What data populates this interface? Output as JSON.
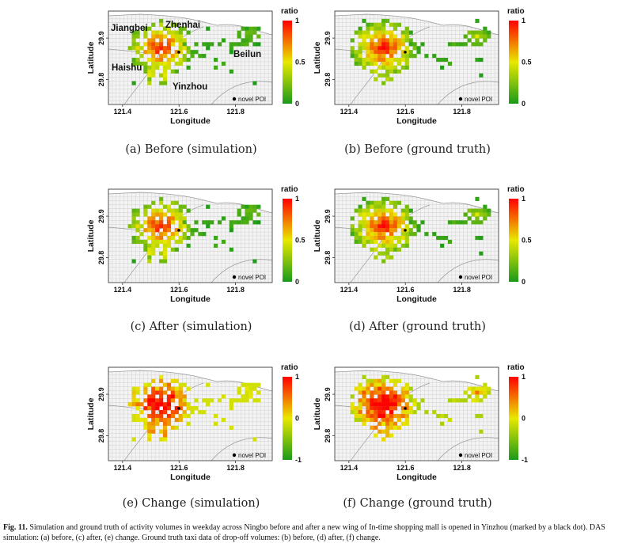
{
  "figure_caption": {
    "label": "Fig. 11.",
    "text": "Simulation and ground truth of activity volumes in weekday across Ningbo before and after a new wing of In-time shopping mall is opened in Yinzhou (marked by a black dot). DAS simulation: (a) before, (c) after, (e) change. Ground truth taxi data of drop-off volumes: (b) before, (d) after, (f) change."
  },
  "chart_data": [
    {
      "id": "a",
      "type": "heatmap",
      "caption": "(a) Before (simulation)",
      "xlabel": "Longitude",
      "ylabel": "Latitude",
      "xticks": [
        "121.4",
        "121.6",
        "121.8"
      ],
      "yticks": [
        "29.9",
        "29.8"
      ],
      "colorbar": {
        "title": "ratio",
        "ticks": [
          "1",
          "0.5",
          "0"
        ],
        "range": [
          0,
          1
        ],
        "colors": [
          "#1a9a1a",
          "#e8e800",
          "#ff0000"
        ]
      },
      "legend": "novel POI",
      "district_labels": [
        "Jiangbei",
        "Zhenhai",
        "Haishu",
        "Beilun",
        "Yinzhou"
      ],
      "xlim": [
        121.35,
        121.93
      ],
      "ylim": [
        29.74,
        29.965
      ],
      "pattern": "sim",
      "scale": "ratio"
    },
    {
      "id": "b",
      "type": "heatmap",
      "caption": "(b) Before (ground truth)",
      "xlabel": "Longitude",
      "ylabel": "Latitude",
      "xticks": [
        "121.4",
        "121.6",
        "121.8"
      ],
      "yticks": [
        "29.9",
        "29.8"
      ],
      "colorbar": {
        "title": "ratio",
        "ticks": [
          "1",
          "0.5",
          "0"
        ],
        "range": [
          0,
          1
        ],
        "colors": [
          "#1a9a1a",
          "#e8e800",
          "#ff0000"
        ]
      },
      "legend": "novel POI",
      "xlim": [
        121.35,
        121.93
      ],
      "ylim": [
        29.74,
        29.965
      ],
      "pattern": "gt",
      "scale": "ratio"
    },
    {
      "id": "c",
      "type": "heatmap",
      "caption": "(c) After (simulation)",
      "xlabel": "Longitude",
      "ylabel": "Latitude",
      "xticks": [
        "121.4",
        "121.6",
        "121.8"
      ],
      "yticks": [
        "29.9",
        "29.8"
      ],
      "colorbar": {
        "title": "ratio",
        "ticks": [
          "1",
          "0.5",
          "0"
        ],
        "range": [
          0,
          1
        ],
        "colors": [
          "#1a9a1a",
          "#e8e800",
          "#ff0000"
        ]
      },
      "legend": "novel POI",
      "xlim": [
        121.35,
        121.93
      ],
      "ylim": [
        29.74,
        29.965
      ],
      "pattern": "sim",
      "scale": "ratio"
    },
    {
      "id": "d",
      "type": "heatmap",
      "caption": "(d) After (ground truth)",
      "xlabel": "Longitude",
      "ylabel": "Latitude",
      "xticks": [
        "121.4",
        "121.6",
        "121.8"
      ],
      "yticks": [
        "29.9",
        "29.8"
      ],
      "colorbar": {
        "title": "ratio",
        "ticks": [
          "1",
          "0.5",
          "0"
        ],
        "range": [
          0,
          1
        ],
        "colors": [
          "#1a9a1a",
          "#e8e800",
          "#ff0000"
        ]
      },
      "legend": "novel POI",
      "xlim": [
        121.35,
        121.93
      ],
      "ylim": [
        29.74,
        29.965
      ],
      "pattern": "gt",
      "scale": "ratio"
    },
    {
      "id": "e",
      "type": "heatmap",
      "caption": "(e) Change (simulation)",
      "xlabel": "Longitude",
      "ylabel": "Latitude",
      "xticks": [
        "121.4",
        "121.6",
        "121.8"
      ],
      "yticks": [
        "29.9",
        "29.8"
      ],
      "colorbar": {
        "title": "ratio",
        "ticks": [
          "1",
          "0",
          "-1"
        ],
        "range": [
          -1,
          1
        ],
        "colors": [
          "#1a9a1a",
          "#e8e800",
          "#ff0000"
        ]
      },
      "legend": "novel POI",
      "xlim": [
        121.35,
        121.93
      ],
      "ylim": [
        29.74,
        29.965
      ],
      "pattern": "sim",
      "scale": "change"
    },
    {
      "id": "f",
      "type": "heatmap",
      "caption": "(f) Change (ground truth)",
      "xlabel": "Longitude",
      "ylabel": "Latitude",
      "xticks": [
        "121.4",
        "121.6",
        "121.8"
      ],
      "yticks": [
        "29.9",
        "29.8"
      ],
      "colorbar": {
        "title": "ratio",
        "ticks": [
          "1",
          "0",
          "-1"
        ],
        "range": [
          -1,
          1
        ],
        "colors": [
          "#1a9a1a",
          "#e8e800",
          "#ff0000"
        ]
      },
      "legend": "novel POI",
      "xlim": [
        121.35,
        121.93
      ],
      "ylim": [
        29.74,
        29.965
      ],
      "pattern": "gt",
      "scale": "change"
    }
  ]
}
